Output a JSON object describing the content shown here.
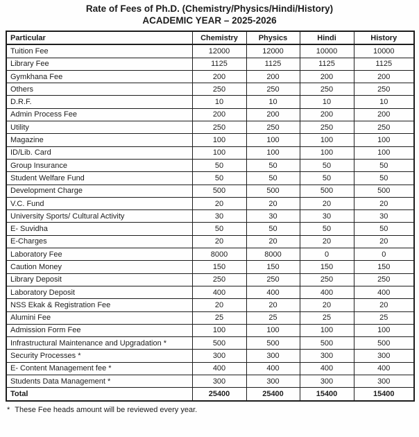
{
  "title": {
    "line1": "Rate of Fees of Ph.D. (Chemistry/Physics/Hindi/History)",
    "line2": "ACADEMIC YEAR – 2025-2026"
  },
  "table": {
    "columns": [
      "Particular",
      "Chemistry",
      "Physics",
      "Hindi",
      "History"
    ],
    "rows": [
      {
        "particular": "Tuition Fee",
        "values": [
          12000,
          12000,
          10000,
          10000
        ]
      },
      {
        "particular": "Library Fee",
        "values": [
          1125,
          1125,
          1125,
          1125
        ]
      },
      {
        "particular": "Gymkhana Fee",
        "values": [
          200,
          200,
          200,
          200
        ]
      },
      {
        "particular": "Others",
        "values": [
          250,
          250,
          250,
          250
        ]
      },
      {
        "particular": "D.R.F.",
        "values": [
          10,
          10,
          10,
          10
        ]
      },
      {
        "particular": "Admin Process Fee",
        "values": [
          200,
          200,
          200,
          200
        ]
      },
      {
        "particular": "Utility",
        "values": [
          250,
          250,
          250,
          250
        ]
      },
      {
        "particular": "Magazine",
        "values": [
          100,
          100,
          100,
          100
        ]
      },
      {
        "particular": "ID/Lib. Card",
        "values": [
          100,
          100,
          100,
          100
        ]
      },
      {
        "particular": "Group Insurance",
        "values": [
          50,
          50,
          50,
          50
        ]
      },
      {
        "particular": "Student Welfare Fund",
        "values": [
          50,
          50,
          50,
          50
        ]
      },
      {
        "particular": "Development Charge",
        "values": [
          500,
          500,
          500,
          500
        ]
      },
      {
        "particular": "V.C. Fund",
        "values": [
          20,
          20,
          20,
          20
        ]
      },
      {
        "particular": "University Sports/ Cultural Activity",
        "values": [
          30,
          30,
          30,
          30
        ]
      },
      {
        "particular": "E- Suvidha",
        "values": [
          50,
          50,
          50,
          50
        ]
      },
      {
        "particular": "E-Charges",
        "values": [
          20,
          20,
          20,
          20
        ]
      },
      {
        "particular": "Laboratory Fee",
        "values": [
          8000,
          8000,
          0,
          0
        ]
      },
      {
        "particular": "Caution Money",
        "values": [
          150,
          150,
          150,
          150
        ]
      },
      {
        "particular": "Library Deposit",
        "values": [
          250,
          250,
          250,
          250
        ]
      },
      {
        "particular": "Laboratory Deposit",
        "values": [
          400,
          400,
          400,
          400
        ]
      },
      {
        "particular": "NSS Ekak & Registration Fee",
        "values": [
          20,
          20,
          20,
          20
        ]
      },
      {
        "particular": "Alumini Fee",
        "values": [
          25,
          25,
          25,
          25
        ]
      },
      {
        "particular": "Admission Form Fee",
        "values": [
          100,
          100,
          100,
          100
        ]
      },
      {
        "particular": "Infrastructural Maintenance and Upgradation *",
        "values": [
          500,
          500,
          500,
          500
        ]
      },
      {
        "particular": "Security Processes *",
        "values": [
          300,
          300,
          300,
          300
        ]
      },
      {
        "particular": "E- Content Management fee *",
        "values": [
          400,
          400,
          400,
          400
        ]
      },
      {
        "particular": "Students Data Management *",
        "values": [
          300,
          300,
          300,
          300
        ]
      }
    ],
    "total_row": {
      "particular": "Total",
      "values": [
        25400,
        25400,
        15400,
        15400
      ]
    }
  },
  "footnote": {
    "marker": "*",
    "text": "These Fee heads amount will be reviewed every year."
  }
}
